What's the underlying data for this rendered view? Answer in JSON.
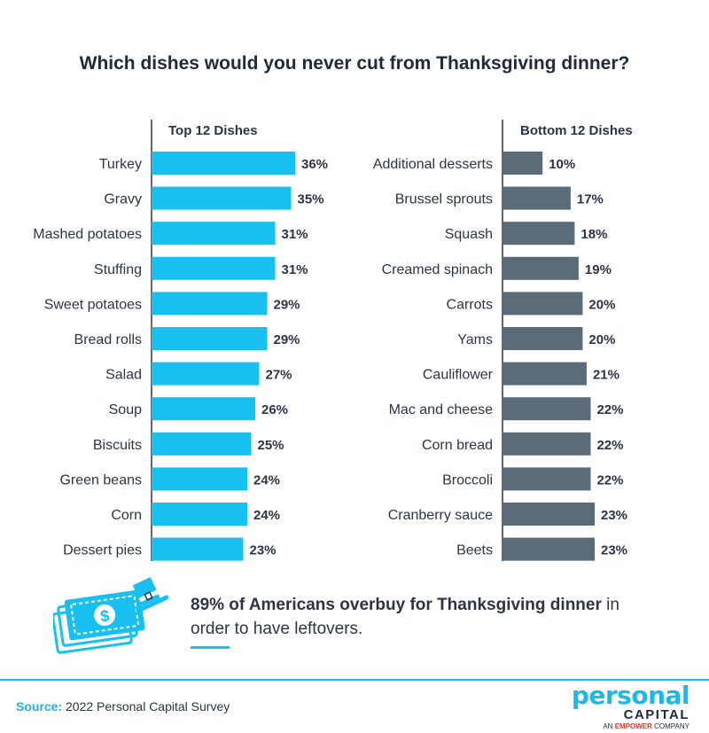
{
  "title": "Which dishes would you never cut from Thanksgiving dinner?",
  "colors": {
    "top": "#18c0f0",
    "bottom": "#5b6b78",
    "axis": "#2c3445",
    "label": "#2c3445",
    "accent": "#18b6e8"
  },
  "chart_data": [
    {
      "type": "bar",
      "orientation": "horizontal",
      "title": "Top 12 Dishes",
      "categories": [
        "Turkey",
        "Gravy",
        "Mashed potatoes",
        "Stuffing",
        "Sweet potatoes",
        "Bread rolls",
        "Salad",
        "Soup",
        "Biscuits",
        "Green beans",
        "Corn",
        "Dessert pies"
      ],
      "values": [
        36,
        35,
        31,
        31,
        29,
        29,
        27,
        26,
        25,
        24,
        24,
        23
      ],
      "value_labels": [
        "36%",
        "35%",
        "31%",
        "31%",
        "29%",
        "29%",
        "27%",
        "26%",
        "25%",
        "24%",
        "24%",
        "23%"
      ],
      "unit": "%",
      "xlim": [
        0,
        36
      ],
      "grid": false,
      "color": "#18c0f0"
    },
    {
      "type": "bar",
      "orientation": "horizontal",
      "title": "Bottom 12 Dishes",
      "categories": [
        "Additional desserts",
        "Brussel sprouts",
        "Squash",
        "Creamed spinach",
        "Carrots",
        "Yams",
        "Cauliflower",
        "Mac and cheese",
        "Corn bread",
        "Broccoli",
        "Cranberry sauce",
        "Beets"
      ],
      "values": [
        10,
        17,
        18,
        19,
        20,
        20,
        21,
        22,
        22,
        22,
        23,
        23
      ],
      "value_labels": [
        "10%",
        "17%",
        "18%",
        "19%",
        "20%",
        "20%",
        "21%",
        "22%",
        "22%",
        "22%",
        "23%",
        "23%"
      ],
      "unit": "%",
      "xlim": [
        0,
        23
      ],
      "grid": false,
      "color": "#5b6b78"
    }
  ],
  "callout": {
    "part1": "89% of Americans ",
    "part2": "overbuy for Thanksgiving dinner",
    "part3": " in order to have leftovers."
  },
  "footer": {
    "source_label": "Source:",
    "source_text": " 2022 Personal Capital Survey",
    "brand_name": "personal",
    "brand_sub": "CAPITAL",
    "brand_tag_a": "AN ",
    "brand_tag_b": "EMPOWER",
    "brand_tag_c": " COMPANY",
    "money_symbol": "$"
  },
  "icons": {
    "illustration": "money-stack-pilgrim-hat-icon"
  }
}
